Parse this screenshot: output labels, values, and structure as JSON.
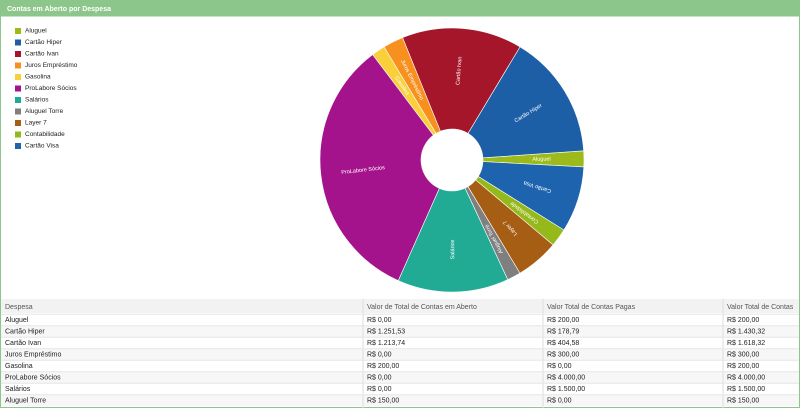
{
  "header": {
    "title": "Contas em Aberto por Despesa"
  },
  "chart_data": {
    "type": "pie",
    "donut": true,
    "categories": [
      "Aluguel",
      "Cartão Hiper",
      "Cartão Ivan",
      "Juros Empréstimo",
      "Gasolina",
      "ProLabore Sócios",
      "Salários",
      "Aluguel Torre",
      "Layer 7",
      "Contabilidade",
      "Cartão Visa"
    ],
    "values": [
      7,
      55,
      53,
      9,
      6,
      119,
      49,
      6,
      19,
      8,
      29
    ],
    "colors": [
      "#9cbb1a",
      "#1d5fa6",
      "#a5162b",
      "#f7901e",
      "#f9cf3a",
      "#a4138b",
      "#21ab95",
      "#7f7f7f",
      "#a65e14",
      "#95b81b",
      "#1d63ad"
    ]
  },
  "table": {
    "columns": [
      "Despesa",
      "Valor de Total de Contas em Aberto",
      "Valor Total de Contas Pagas",
      "Valor Total de Contas"
    ],
    "rows": [
      [
        "Aluguel",
        "R$ 0,00",
        "R$ 200,00",
        "R$ 200,00"
      ],
      [
        "Cartão Hiper",
        "R$ 1.251,53",
        "R$ 178,79",
        "R$ 1.430,32"
      ],
      [
        "Cartão Ivan",
        "R$ 1.213,74",
        "R$ 404,58",
        "R$ 1.618,32"
      ],
      [
        "Juros Empréstimo",
        "R$ 0,00",
        "R$ 300,00",
        "R$ 300,00"
      ],
      [
        "Gasolina",
        "R$ 200,00",
        "R$ 0,00",
        "R$ 200,00"
      ],
      [
        "ProLabore Sócios",
        "R$ 0,00",
        "R$ 4.000,00",
        "R$ 4.000,00"
      ],
      [
        "Salários",
        "R$ 0,00",
        "R$ 1.500,00",
        "R$ 1.500,00"
      ],
      [
        "Aluguel Torre",
        "R$ 150,00",
        "R$ 0,00",
        "R$ 150,00"
      ]
    ]
  }
}
